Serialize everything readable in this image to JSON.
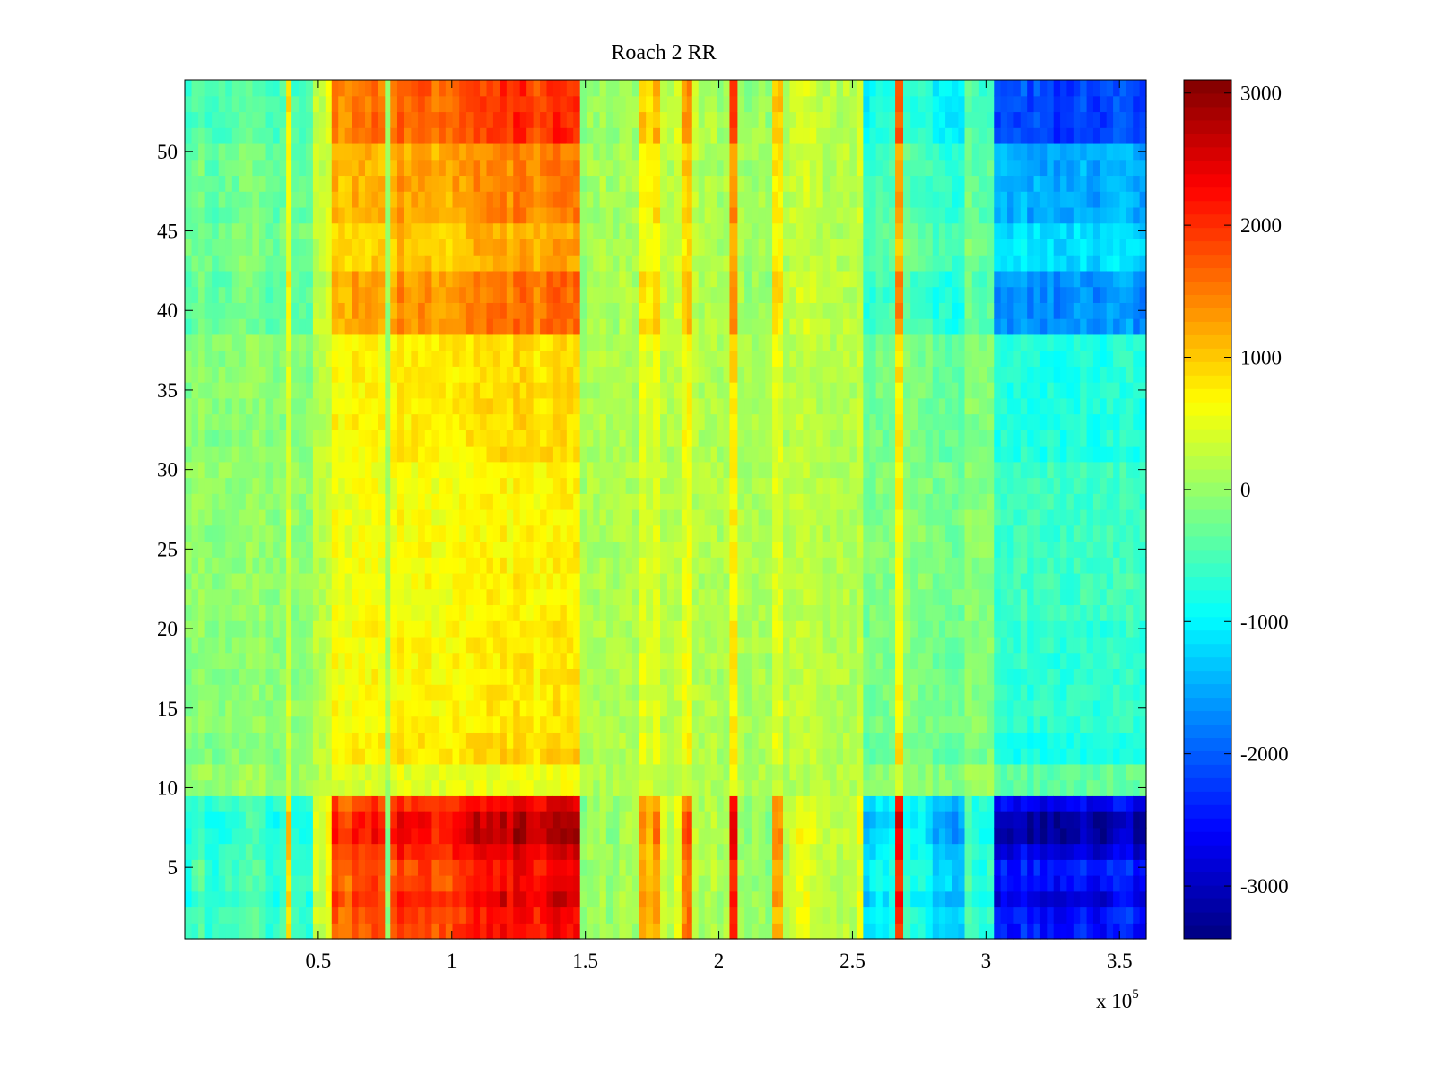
{
  "chart_data": {
    "type": "heatmap",
    "title": "Roach 2 RR",
    "xlabel": "",
    "ylabel": "",
    "x_multiplier_label": "x 10",
    "x_multiplier_exponent": "5",
    "xlim": [
      0,
      360000
    ],
    "ylim": [
      0.5,
      54.5
    ],
    "x_ticks": [
      {
        "value": 50000,
        "label": "0.5"
      },
      {
        "value": 100000,
        "label": "1"
      },
      {
        "value": 150000,
        "label": "1.5"
      },
      {
        "value": 200000,
        "label": "2"
      },
      {
        "value": 250000,
        "label": "2.5"
      },
      {
        "value": 300000,
        "label": "3"
      },
      {
        "value": 350000,
        "label": "3.5"
      }
    ],
    "y_ticks": [
      {
        "value": 5,
        "label": "5"
      },
      {
        "value": 10,
        "label": "10"
      },
      {
        "value": 15,
        "label": "15"
      },
      {
        "value": 20,
        "label": "20"
      },
      {
        "value": 25,
        "label": "25"
      },
      {
        "value": 30,
        "label": "30"
      },
      {
        "value": 35,
        "label": "35"
      },
      {
        "value": 40,
        "label": "40"
      },
      {
        "value": 45,
        "label": "45"
      },
      {
        "value": 50,
        "label": "50"
      }
    ],
    "colorbar": {
      "colormap": "jet",
      "range": [
        -3400,
        3100
      ],
      "ticks": [
        {
          "value": 3000,
          "label": "3000"
        },
        {
          "value": 2000,
          "label": "2000"
        },
        {
          "value": 1000,
          "label": "1000"
        },
        {
          "value": 0,
          "label": "0"
        },
        {
          "value": -1000,
          "label": "-1000"
        },
        {
          "value": -2000,
          "label": "-2000"
        },
        {
          "value": -3000,
          "label": "-3000"
        }
      ]
    },
    "rows": 54,
    "row_profiles": [
      {
        "rows": [
          1,
          2
        ],
        "amplitude": 0.8
      },
      {
        "rows": [
          3,
          3
        ],
        "amplitude": 0.9
      },
      {
        "rows": [
          4,
          5
        ],
        "amplitude": 0.8
      },
      {
        "rows": [
          6,
          6
        ],
        "amplitude": 0.9
      },
      {
        "rows": [
          7,
          8
        ],
        "amplitude": 1.0
      },
      {
        "rows": [
          9,
          9
        ],
        "amplitude": 0.85
      },
      {
        "rows": [
          10,
          11
        ],
        "amplitude": 0.15
      },
      {
        "rows": [
          12,
          13
        ],
        "amplitude": 0.3
      },
      {
        "rows": [
          14,
          20
        ],
        "amplitude": 0.25
      },
      {
        "rows": [
          21,
          30
        ],
        "amplitude": 0.22
      },
      {
        "rows": [
          31,
          38
        ],
        "amplitude": 0.28
      },
      {
        "rows": [
          39,
          42
        ],
        "amplitude": 0.55
      },
      {
        "rows": [
          43,
          45
        ],
        "amplitude": 0.4
      },
      {
        "rows": [
          46,
          50
        ],
        "amplitude": 0.5
      },
      {
        "rows": [
          51,
          54
        ],
        "amplitude": 0.7
      }
    ],
    "column_bands": [
      {
        "x": [
          0,
          38000
        ],
        "value": -700
      },
      {
        "x": [
          38000,
          40000
        ],
        "value": 1200
      },
      {
        "x": [
          40000,
          48000
        ],
        "value": -900
      },
      {
        "x": [
          48000,
          55000
        ],
        "value": 500
      },
      {
        "x": [
          55000,
          75000
        ],
        "value": 2100
      },
      {
        "x": [
          75000,
          77000
        ],
        "value": 0
      },
      {
        "x": [
          77000,
          108000
        ],
        "value": 2300
      },
      {
        "x": [
          108000,
          148000
        ],
        "value": 2700
      },
      {
        "x": [
          148000,
          170000
        ],
        "value": 0
      },
      {
        "x": [
          170000,
          178000
        ],
        "value": 1400
      },
      {
        "x": [
          178000,
          186000
        ],
        "value": 400
      },
      {
        "x": [
          186000,
          190000
        ],
        "value": 1800
      },
      {
        "x": [
          190000,
          204000
        ],
        "value": 200
      },
      {
        "x": [
          204000,
          207000
        ],
        "value": 2500
      },
      {
        "x": [
          207000,
          220000
        ],
        "value": 0
      },
      {
        "x": [
          220000,
          224000
        ],
        "value": 1600
      },
      {
        "x": [
          224000,
          254000
        ],
        "value": 400
      },
      {
        "x": [
          254000,
          266000
        ],
        "value": -1300
      },
      {
        "x": [
          266000,
          269000
        ],
        "value": 2600
      },
      {
        "x": [
          269000,
          280000
        ],
        "value": -1000
      },
      {
        "x": [
          280000,
          292000
        ],
        "value": -1500
      },
      {
        "x": [
          292000,
          303000
        ],
        "value": -800
      },
      {
        "x": [
          303000,
          360000
        ],
        "value": -3100
      }
    ]
  }
}
